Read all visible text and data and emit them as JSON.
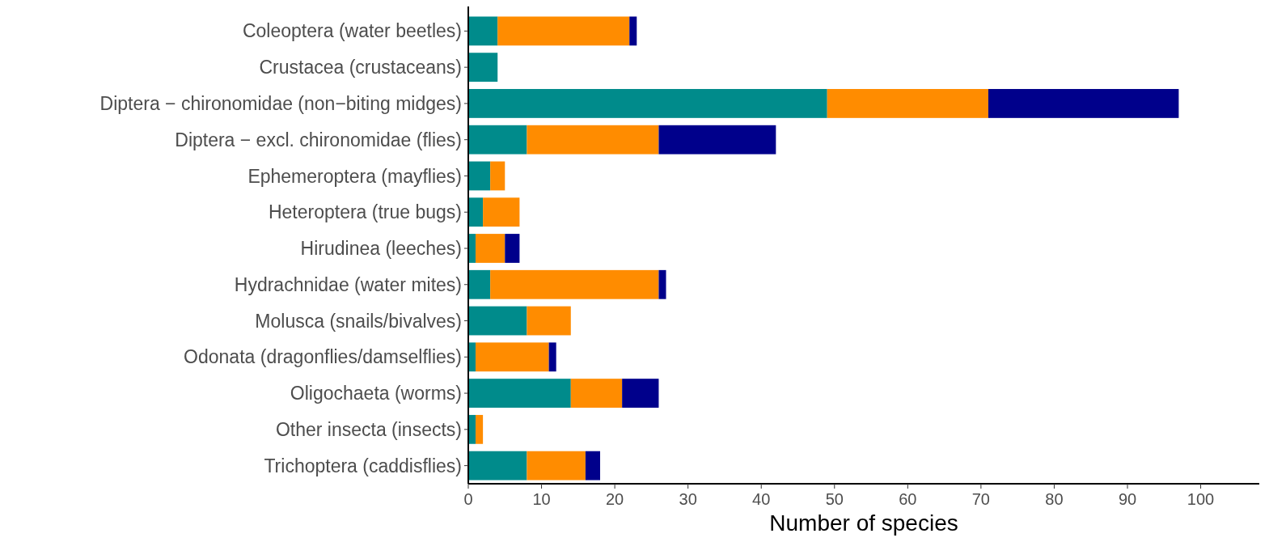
{
  "chart_data": {
    "type": "bar",
    "orientation": "horizontal",
    "stacked": true,
    "xlabel": "Number of species",
    "categories": [
      "Coleoptera (water beetles)",
      "Crustacea (crustaceans)",
      "Diptera − chironomidae (non−biting midges)",
      "Diptera − excl. chironomidae (flies)",
      "Ephemeroptera (mayflies)",
      "Heteroptera (true bugs)",
      "Hirudinea (leeches)",
      "Hydrachnidae (water mites)",
      "Molusca (snails/bivalves)",
      "Odonata (dragonflies/damselflies)",
      "Oligochaeta (worms)",
      "Other insecta (insects)",
      "Trichoptera (caddisflies)"
    ],
    "series": [
      {
        "color": "#008b8b",
        "values": [
          4,
          4,
          49,
          8,
          3,
          2,
          1,
          3,
          8,
          1,
          14,
          1,
          8
        ]
      },
      {
        "color": "#ff8c00",
        "values": [
          18,
          0,
          22,
          18,
          2,
          5,
          4,
          23,
          6,
          10,
          7,
          1,
          8
        ]
      },
      {
        "color": "#00008b",
        "values": [
          1,
          0,
          26,
          16,
          0,
          0,
          2,
          1,
          0,
          1,
          5,
          0,
          2
        ]
      }
    ],
    "xlim": [
      0,
      108
    ],
    "xticks": [
      0,
      10,
      20,
      30,
      40,
      50,
      60,
      70,
      80,
      90,
      100
    ],
    "grid": false
  }
}
